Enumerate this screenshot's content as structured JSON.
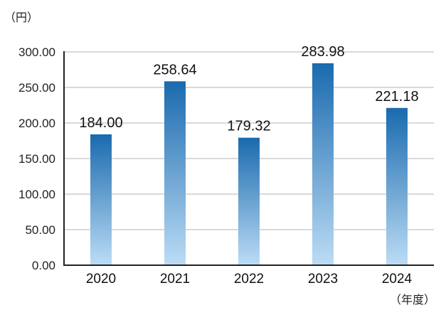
{
  "chart_data": {
    "type": "bar",
    "title": "",
    "y_unit": "（円）",
    "x_unit": "（年度）",
    "categories": [
      "2020",
      "2021",
      "2022",
      "2023",
      "2024"
    ],
    "values": [
      184.0,
      258.64,
      179.32,
      283.98,
      221.18
    ],
    "value_labels": [
      "184.00",
      "258.64",
      "179.32",
      "283.98",
      "221.18"
    ],
    "ylim": [
      0,
      300
    ],
    "yticks": [
      "0.00",
      "50.00",
      "100.00",
      "150.00",
      "200.00",
      "250.00",
      "300.00"
    ],
    "grid": true,
    "bar_gradient": {
      "top": "#1a6aae",
      "bottom": "#bcdcf5"
    },
    "grid_color": "#d9d9d9",
    "axis_color": "#222222"
  }
}
